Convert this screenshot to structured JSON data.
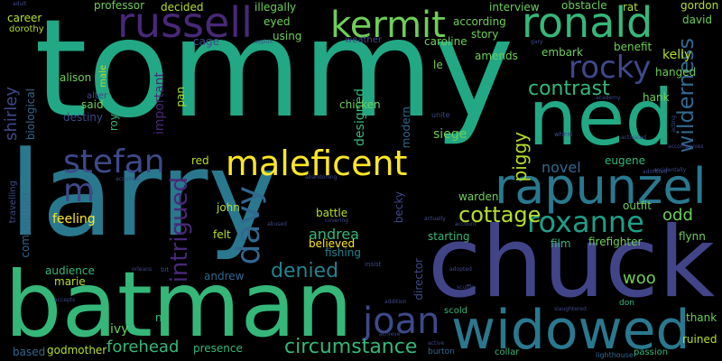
{
  "palette": {
    "background": "#000000",
    "yellow": "#fde725",
    "lime": "#b5de2b",
    "green": "#6ece58",
    "green2": "#35b779",
    "teal": "#1f9e89",
    "blue": "#26828e",
    "blue2": "#31688e",
    "indigo": "#3e4989",
    "purple": "#482878",
    "violet": "#440154"
  },
  "words": [
    {
      "id": "tommy",
      "text": "tommy"
    },
    {
      "id": "larry",
      "text": "larry"
    },
    {
      "id": "chuck",
      "text": "chuck"
    },
    {
      "id": "batman",
      "text": "batman"
    },
    {
      "id": "ned",
      "text": "ned"
    },
    {
      "id": "widowed",
      "text": "widowed"
    },
    {
      "id": "rapunzel",
      "text": "rapunzel"
    },
    {
      "id": "ronald",
      "text": "ronald"
    },
    {
      "id": "kermit",
      "text": "kermit"
    },
    {
      "id": "russell",
      "text": "russell"
    },
    {
      "id": "maleficent",
      "text": "maleficent"
    },
    {
      "id": "stefan",
      "text": "stefan"
    },
    {
      "id": "roxanne",
      "text": "roxanne"
    },
    {
      "id": "joan",
      "text": "joan"
    },
    {
      "id": "rocky",
      "text": "rocky"
    },
    {
      "id": "davy",
      "text": "davy"
    },
    {
      "id": "circumstance",
      "text": "circumstance"
    },
    {
      "id": "contrast",
      "text": "contrast"
    },
    {
      "id": "m",
      "text": "m"
    },
    {
      "id": "wilderness",
      "text": "wilderness"
    },
    {
      "id": "cottage",
      "text": "cottage"
    },
    {
      "id": "intrigued",
      "text": "intrigued"
    },
    {
      "id": "denied",
      "text": "denied"
    },
    {
      "id": "forehead",
      "text": "forehead"
    },
    {
      "id": "piggy",
      "text": "piggy"
    },
    {
      "id": "andrea",
      "text": "andrea"
    },
    {
      "id": "odd",
      "text": "odd"
    },
    {
      "id": "woo",
      "text": "woo"
    },
    {
      "id": "shirley",
      "text": "shirley"
    },
    {
      "id": "novel",
      "text": "novel"
    },
    {
      "id": "feeling",
      "text": "feeling"
    },
    {
      "id": "designed",
      "text": "designed"
    },
    {
      "id": "siege",
      "text": "siege"
    },
    {
      "id": "hank",
      "text": "hank"
    },
    {
      "id": "kelly",
      "text": "kelly"
    },
    {
      "id": "ruined",
      "text": "ruined"
    },
    {
      "id": "godmother",
      "text": "godmother"
    },
    {
      "id": "presence",
      "text": "presence"
    },
    {
      "id": "firefighter",
      "text": "firefighter"
    },
    {
      "id": "eugene",
      "text": "eugene"
    },
    {
      "id": "starting",
      "text": "starting"
    },
    {
      "id": "film",
      "text": "film"
    },
    {
      "id": "audience",
      "text": "audience"
    },
    {
      "id": "marie",
      "text": "marie"
    },
    {
      "id": "ivy",
      "text": "ivy"
    },
    {
      "id": "na",
      "text": "na"
    },
    {
      "id": "based",
      "text": "based"
    },
    {
      "id": "andrew",
      "text": "andrew"
    },
    {
      "id": "fishing",
      "text": "fishing"
    },
    {
      "id": "believed",
      "text": "believed"
    },
    {
      "id": "battle",
      "text": "battle"
    },
    {
      "id": "felt",
      "text": "felt"
    },
    {
      "id": "john",
      "text": "john"
    },
    {
      "id": "red",
      "text": "red"
    },
    {
      "id": "modern",
      "text": "modern"
    },
    {
      "id": "biological",
      "text": "biological"
    },
    {
      "id": "competition",
      "text": "competition"
    },
    {
      "id": "travelling",
      "text": "travelling"
    },
    {
      "id": "roy",
      "text": "roy"
    },
    {
      "id": "said",
      "text": "said"
    },
    {
      "id": "destiny",
      "text": "destiny"
    },
    {
      "id": "alter",
      "text": "alter"
    },
    {
      "id": "alison",
      "text": "alison"
    },
    {
      "id": "male",
      "text": "male"
    },
    {
      "id": "important",
      "text": "important"
    },
    {
      "id": "pan",
      "text": "pan"
    },
    {
      "id": "cage",
      "text": "cage"
    },
    {
      "id": "professor",
      "text": "professor"
    },
    {
      "id": "decided",
      "text": "decided"
    },
    {
      "id": "illegally",
      "text": "illegally"
    },
    {
      "id": "eyed",
      "text": "eyed"
    },
    {
      "id": "using",
      "text": "using"
    },
    {
      "id": "weather",
      "text": "weather"
    },
    {
      "id": "chicken",
      "text": "chicken"
    },
    {
      "id": "caroline",
      "text": "caroline"
    },
    {
      "id": "story",
      "text": "story"
    },
    {
      "id": "according",
      "text": "according"
    },
    {
      "id": "interview",
      "text": "interview"
    },
    {
      "id": "obstacle",
      "text": "obstacle"
    },
    {
      "id": "rat",
      "text": "rat"
    },
    {
      "id": "gordon",
      "text": "gordon"
    },
    {
      "id": "david",
      "text": "david"
    },
    {
      "id": "embark",
      "text": "embark"
    },
    {
      "id": "benefit",
      "text": "benefit"
    },
    {
      "id": "amends",
      "text": "amends"
    },
    {
      "id": "le",
      "text": "le"
    },
    {
      "id": "hanged",
      "text": "hanged"
    },
    {
      "id": "career",
      "text": "career"
    },
    {
      "id": "dorothy",
      "text": "dorothy"
    },
    {
      "id": "warden",
      "text": "warden"
    },
    {
      "id": "becky",
      "text": "becky"
    },
    {
      "id": "director",
      "text": "director"
    },
    {
      "id": "outfit",
      "text": "outfit"
    },
    {
      "id": "flynn",
      "text": "flynn"
    },
    {
      "id": "thank",
      "text": "thank"
    },
    {
      "id": "passion",
      "text": "passion"
    },
    {
      "id": "scold",
      "text": "scold"
    },
    {
      "id": "collar",
      "text": "collar"
    },
    {
      "id": "burton",
      "text": "burton"
    },
    {
      "id": "lighthouse",
      "text": "lighthouse"
    },
    {
      "id": "don",
      "text": "don"
    },
    {
      "id": "wheel",
      "text": "wheel"
    },
    {
      "id": "unite",
      "text": "unite"
    },
    {
      "id": "insist",
      "text": "insist"
    },
    {
      "id": "bit",
      "text": "bit"
    },
    {
      "id": "achieve",
      "text": "achieve"
    },
    {
      "id": "active",
      "text": "active"
    },
    {
      "id": "addition",
      "text": "addition"
    },
    {
      "id": "orleans",
      "text": "orleans"
    },
    {
      "id": "exploit",
      "text": "exploit"
    },
    {
      "id": "actually",
      "text": "actually"
    },
    {
      "id": "account",
      "text": "account"
    },
    {
      "id": "activated",
      "text": "activated"
    },
    {
      "id": "adopted",
      "text": "adopted"
    },
    {
      "id": "accepts",
      "text": "accepts"
    },
    {
      "id": "gary",
      "text": "gary"
    },
    {
      "id": "adult",
      "text": "adult"
    },
    {
      "id": "academy",
      "text": "academy"
    },
    {
      "id": "accompanies",
      "text": "accompanies"
    },
    {
      "id": "accidentally",
      "text": "accidentally"
    },
    {
      "id": "acquired",
      "text": "acquired"
    },
    {
      "id": "abandoning",
      "text": "abandoning"
    },
    {
      "id": "covering",
      "text": "covering"
    },
    {
      "id": "acting",
      "text": "acting"
    },
    {
      "id": "slaughtered",
      "text": "slaughtered"
    },
    {
      "id": "scuffle",
      "text": "scuffle"
    },
    {
      "id": "admitted",
      "text": "admitted"
    },
    {
      "id": "abused",
      "text": "abused"
    }
  ]
}
